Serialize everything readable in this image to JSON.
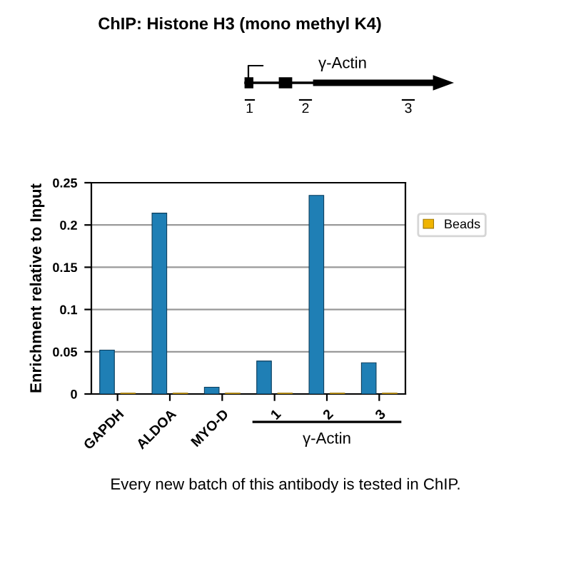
{
  "chart_data": {
    "type": "bar",
    "title": "ChIP: Histone H3 (mono methyl K4)",
    "ylabel": "Enrichment relative to Input",
    "categories": [
      "GAPDH",
      "ALDOA",
      "MYO-D",
      "1",
      "2",
      "3"
    ],
    "series": [
      {
        "color": "#1f7fb5",
        "values": [
          0.052,
          0.214,
          0.008,
          0.039,
          0.235,
          0.037
        ]
      },
      {
        "name": "Beads",
        "color": "#f0b400",
        "values": [
          0.001,
          0.001,
          0.001,
          0.001,
          0.001,
          0.001
        ]
      }
    ],
    "ylim": [
      0,
      0.25
    ],
    "yticks": [
      0,
      0.05,
      0.1,
      0.15,
      0.2,
      0.25
    ],
    "grid": "y",
    "legend": "right",
    "annotations": [
      "γ-Actin",
      "γ-Actin",
      "1",
      "2",
      "3",
      "Every new batch of this antibody is tested in ChIP."
    ]
  }
}
